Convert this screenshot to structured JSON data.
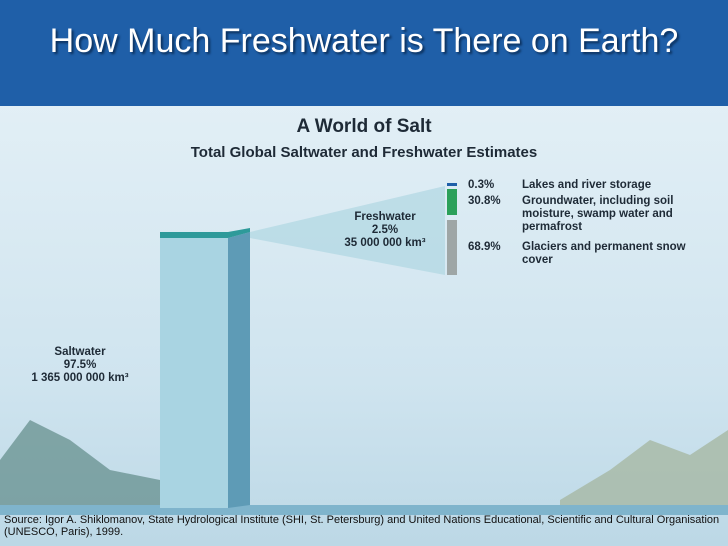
{
  "title": "How Much Freshwater is There on Earth?",
  "figure": {
    "title": "A World of Salt",
    "subtitle": "Total Global Saltwater and Freshwater Estimates",
    "saltwater": {
      "label": "Saltwater",
      "percent": "97.5%",
      "volume": "1 365 000 000 km³"
    },
    "freshwater": {
      "label": "Freshwater",
      "percent": "2.5%",
      "volume": "35 000 000 km³"
    },
    "breakdown": [
      {
        "percent": "0.3%",
        "label": "Lakes and river storage"
      },
      {
        "percent": "30.8%",
        "label": "Groundwater, including soil moisture, swamp water and permafrost"
      },
      {
        "percent": "68.9%",
        "label": "Glaciers and permanent snow cover"
      }
    ]
  },
  "source": "Source: Igor A. Shiklomanov, State Hydrological Institute (SHI, St. Petersburg) and United Nations Educational, Scientific and Cultural Organisation (UNESCO, Paris), 1999."
}
